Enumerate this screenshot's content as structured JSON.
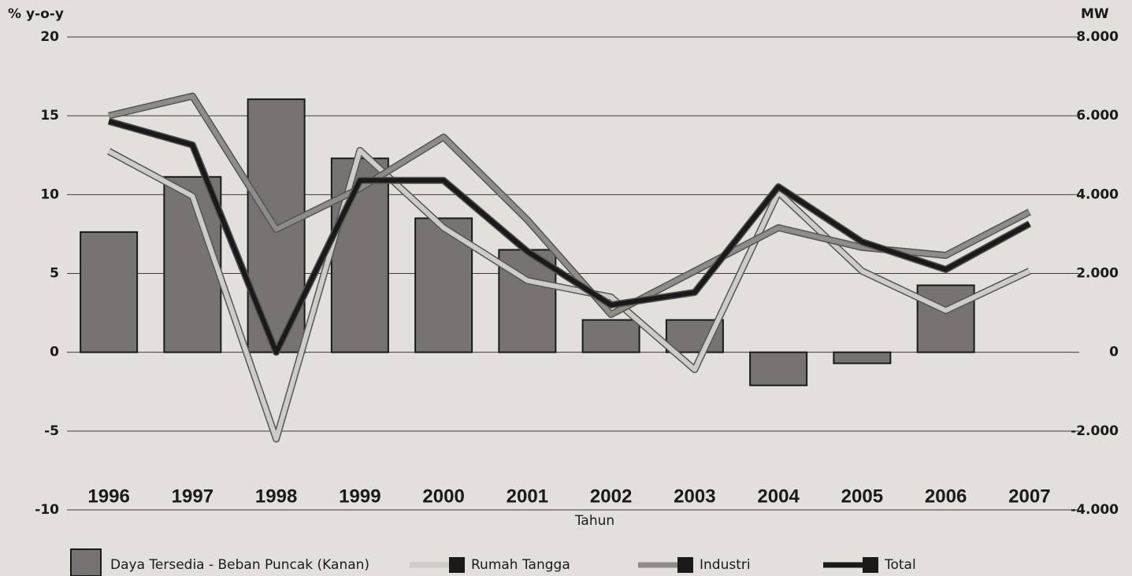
{
  "chart_data": {
    "type": "combo",
    "y_label": "% y-o-y",
    "y2_label": "MW",
    "x_label": "Tahun",
    "categories": [
      "1996",
      "1997",
      "1998",
      "1999",
      "2000",
      "2001",
      "2002",
      "2003",
      "2004",
      "2005",
      "2006",
      "2007"
    ],
    "series": [
      {
        "name": "Daya Tersedia - Beban Puncak (Kanan)",
        "type": "bar",
        "axis": "y2",
        "color": "#767370",
        "values": [
          3050,
          4450,
          6420,
          4920,
          3400,
          2600,
          820,
          820,
          -840,
          -280,
          1700,
          null
        ]
      },
      {
        "name": "Rumah Tangga",
        "type": "line",
        "color": "#cfccc8",
        "values": [
          12.75,
          9.9,
          -5.5,
          12.8,
          7.9,
          4.55,
          3.5,
          -1.1,
          10.15,
          5.15,
          2.65,
          5.15
        ]
      },
      {
        "name": "Industri",
        "type": "line",
        "color": "#8e8b88",
        "values": [
          15,
          16.25,
          7.8,
          10.4,
          13.65,
          8.4,
          2.4,
          5.15,
          7.9,
          6.65,
          6.15,
          8.9
        ]
      },
      {
        "name": "Total",
        "type": "line",
        "color": "#1a1a1a",
        "values": [
          14.65,
          13.15,
          0,
          10.9,
          10.9,
          6.4,
          3.0,
          3.8,
          10.5,
          7,
          5.25,
          8.15
        ]
      }
    ],
    "ylim": [
      -10,
      20
    ],
    "yticks": [
      20,
      15,
      10,
      5,
      0,
      -5,
      -10
    ],
    "y2lim": [
      -4000,
      8000
    ],
    "y2ticks": [
      {
        "value": 8000,
        "label": "8.000"
      },
      {
        "value": 6000,
        "label": "6.000"
      },
      {
        "value": 4000,
        "label": "4.000"
      },
      {
        "value": 2000,
        "label": "2.000"
      },
      0,
      {
        "value": -2000,
        "label": "-2.000"
      },
      {
        "value": -4000,
        "label": "-4.000"
      }
    ],
    "grid": true
  }
}
